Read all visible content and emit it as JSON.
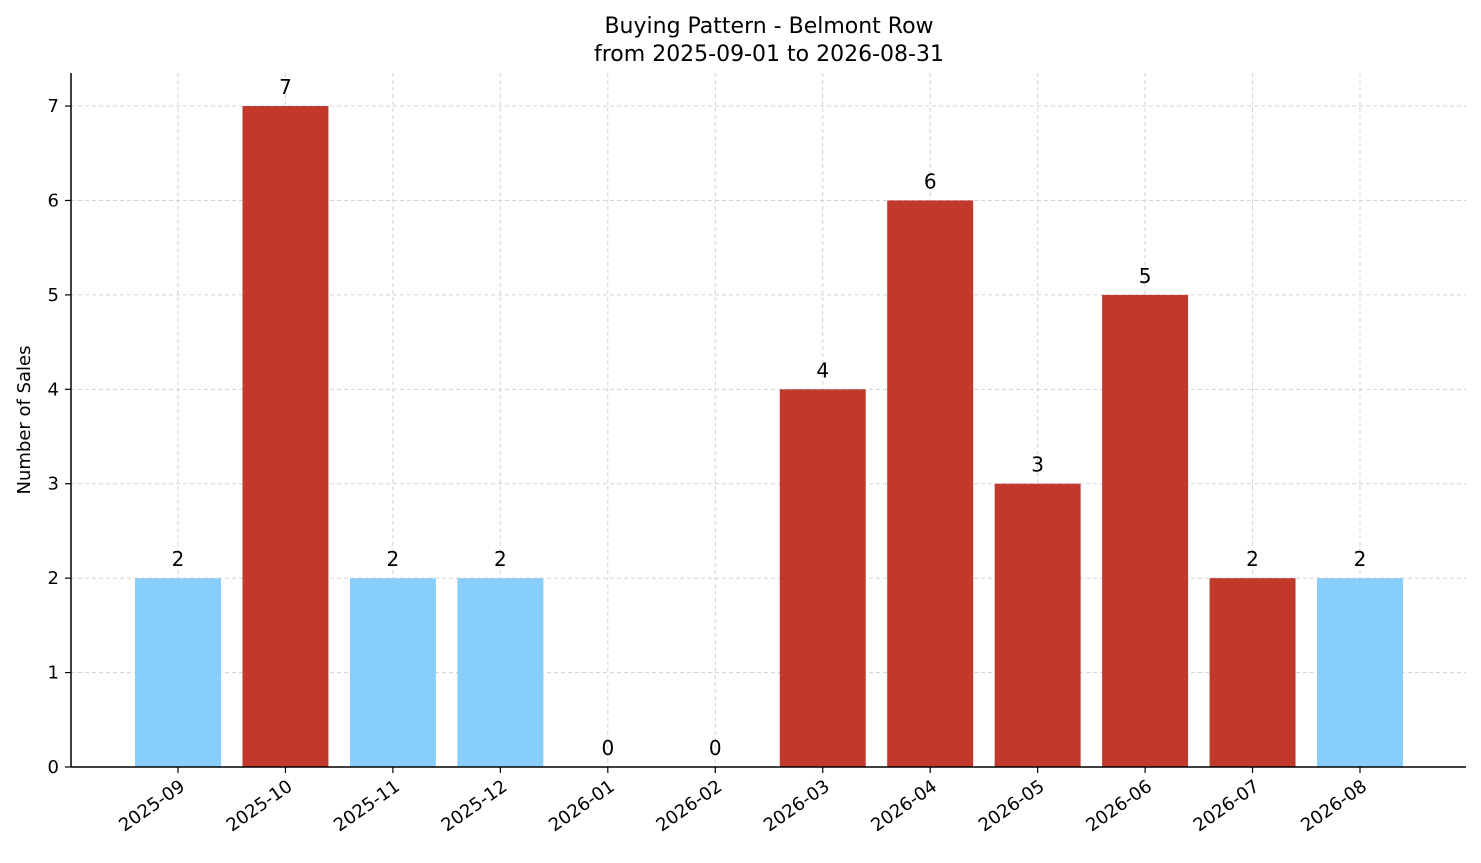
{
  "chart_data": {
    "type": "bar",
    "title_line1": "Buying Pattern - Belmont Row",
    "title_line2": "from 2025-09-01 to 2026-08-31",
    "xlabel": "",
    "ylabel": "Number of Sales",
    "ylim": [
      0,
      7.35
    ],
    "yticks": [
      0,
      1,
      2,
      3,
      4,
      5,
      6,
      7
    ],
    "grid": true,
    "categories": [
      "2025-09",
      "2025-10",
      "2025-11",
      "2025-12",
      "2026-01",
      "2026-02",
      "2026-03",
      "2026-04",
      "2026-05",
      "2026-06",
      "2026-07",
      "2026-08"
    ],
    "values": [
      2,
      7,
      2,
      2,
      0,
      0,
      4,
      6,
      3,
      5,
      2,
      2
    ],
    "bar_colors": [
      "#87cefa",
      "#c0392b",
      "#87cefa",
      "#87cefa",
      "#87cefa",
      "#87cefa",
      "#c0392b",
      "#c0392b",
      "#c0392b",
      "#c0392b",
      "#c0392b",
      "#87cefa"
    ]
  }
}
